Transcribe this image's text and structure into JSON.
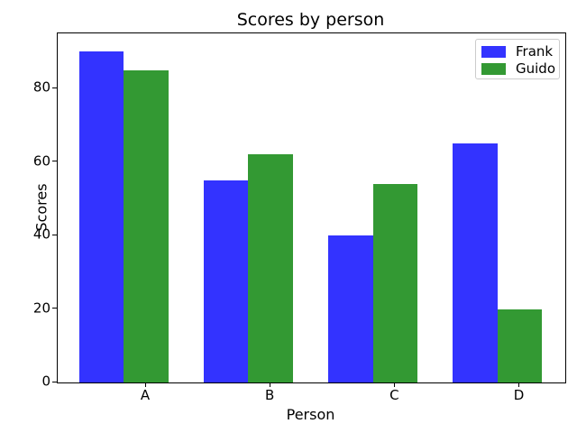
{
  "figure": {
    "background": "#ffffff",
    "text_color": "#000000",
    "spine_color": "#000000",
    "legend_border_color": "#cccccc"
  },
  "chart_data": {
    "type": "bar",
    "title": "Scores by person",
    "xlabel": "Person",
    "ylabel": "Scores",
    "categories": [
      "A",
      "B",
      "C",
      "D"
    ],
    "series": [
      {
        "name": "Frank",
        "color": "#3333ff",
        "values": [
          90,
          55,
          40,
          65
        ]
      },
      {
        "name": "Guido",
        "color": "#339933",
        "values": [
          85,
          62,
          54,
          20
        ]
      }
    ],
    "ylim": [
      0,
      95
    ],
    "yticks": [
      0,
      20,
      40,
      60,
      80
    ],
    "grid": false,
    "legend_position": "upper right"
  }
}
